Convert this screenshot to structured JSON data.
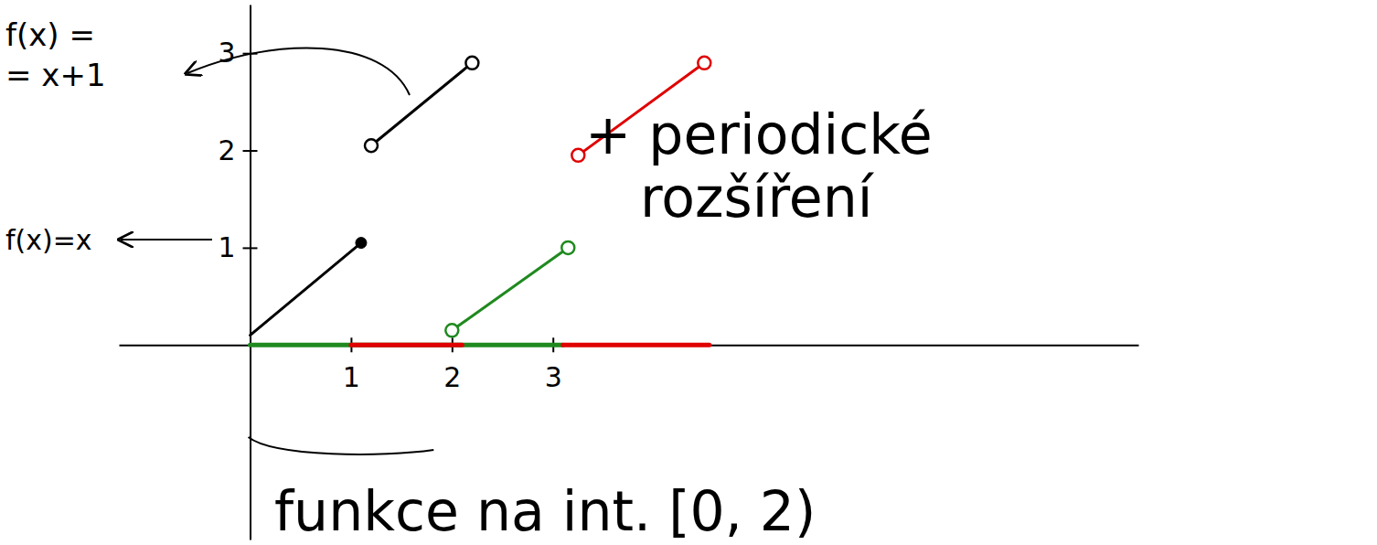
{
  "chart_data": {
    "type": "line",
    "xlim": [
      -1.3,
      8.8
    ],
    "ylim": [
      -2,
      3.5
    ],
    "xticks": [
      1,
      2,
      3
    ],
    "yticks": [
      1,
      2,
      3
    ],
    "grid": false,
    "annotations": [
      "f(x) =",
      "= x+1",
      "f(x)=x",
      "+ periodické rozšíření",
      "funkce na int. [0, 2)"
    ],
    "series": [
      {
        "color": "#000000",
        "x": [
          0,
          1.1
        ],
        "values": [
          0.1,
          1.05
        ],
        "marker": "end_dot"
      },
      {
        "color": "#000000",
        "x": [
          1.2,
          2.2
        ],
        "values": [
          2.05,
          2.9
        ],
        "marker": "open_circle"
      },
      {
        "color": "#1f8a1f",
        "x": [
          2,
          3.15
        ],
        "values": [
          0.15,
          1
        ],
        "marker": "open_circle"
      },
      {
        "color": "#e00000",
        "x": [
          3.25,
          4.5
        ],
        "values": [
          1.95,
          2.9
        ],
        "marker": "open_circle"
      },
      {
        "color": "#1f8a1f",
        "x": [
          0,
          3.1
        ],
        "values": [
          0,
          0
        ],
        "marker": "none"
      },
      {
        "color": "#e00000",
        "x": [
          1,
          2.1
        ],
        "values": [
          0,
          0
        ],
        "marker": "none"
      },
      {
        "color": "#e00000",
        "x": [
          3.1,
          4.55
        ],
        "values": [
          0,
          0
        ],
        "marker": "none"
      }
    ]
  }
}
